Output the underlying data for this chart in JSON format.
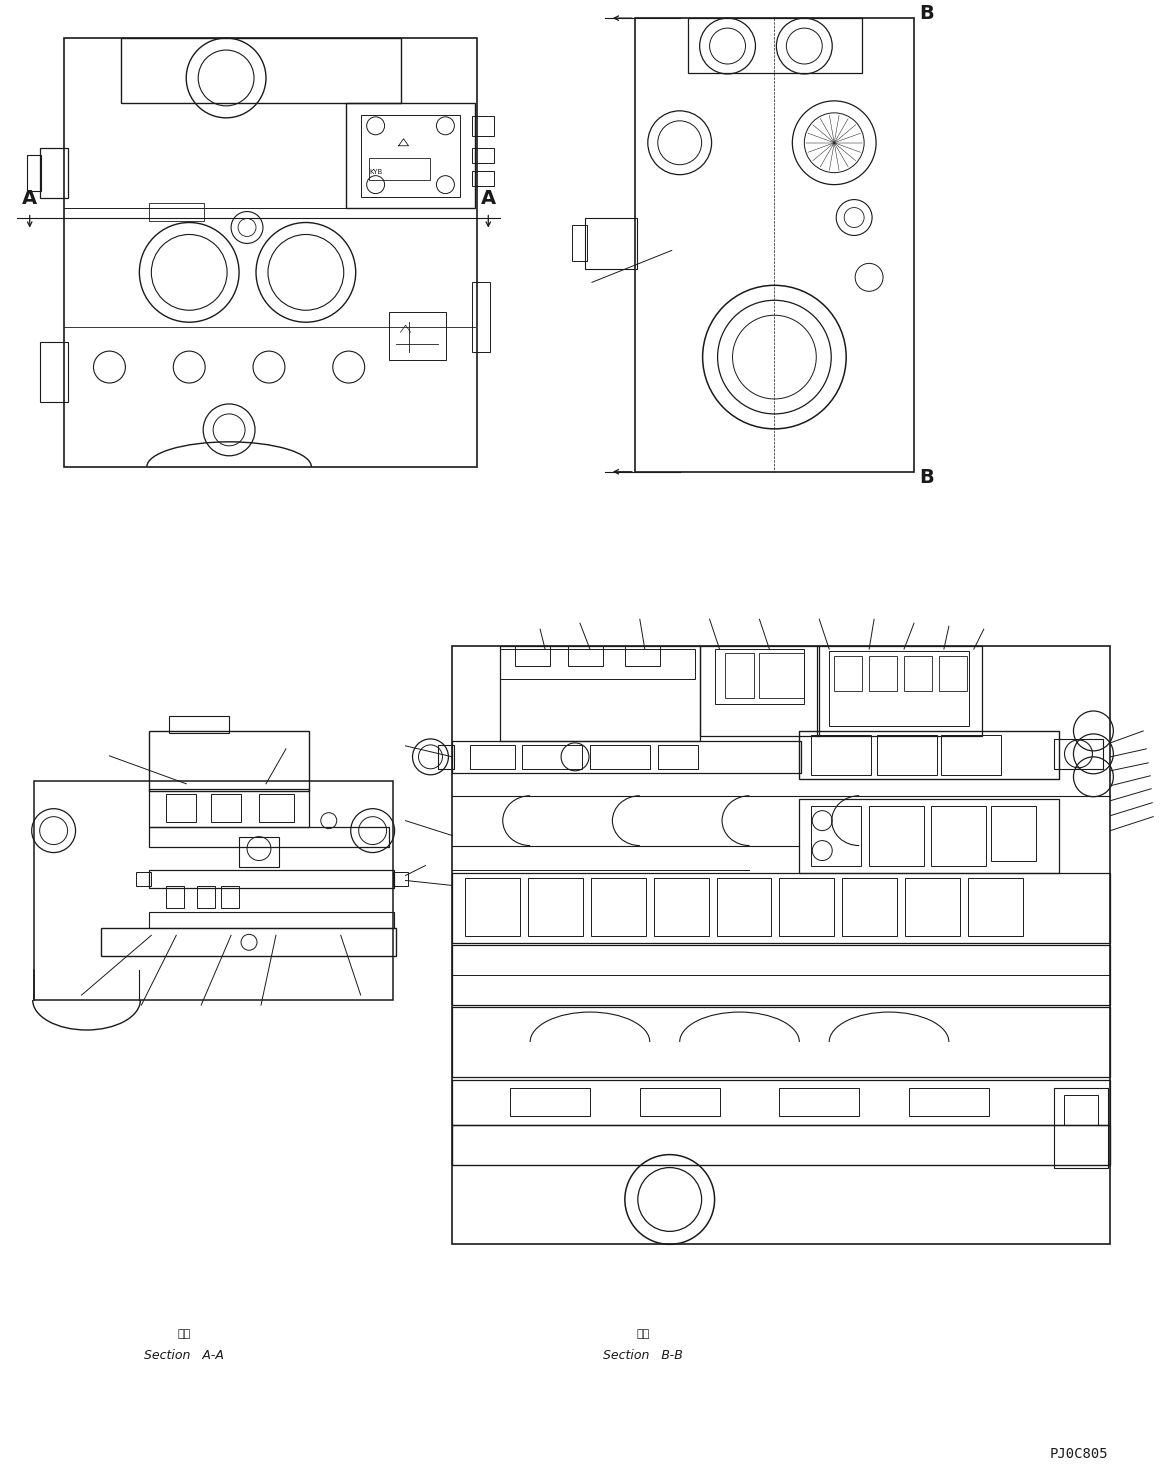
{
  "bg_color": "#ffffff",
  "line_color": "#1a1a1a",
  "line_width": 0.8,
  "title_text": "PJ0C805",
  "section_aa_label": "Section   A-A",
  "section_bb_label": "Section   B-B",
  "kanji_aa": "断面",
  "kanji_bb": "断面",
  "label_A": "A",
  "label_B": "B",
  "fig_width": 11.63,
  "fig_height": 14.81,
  "dpi": 100
}
